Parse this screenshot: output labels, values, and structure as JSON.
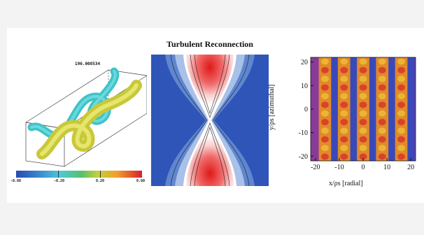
{
  "panel_sim": {
    "time_label": "196.008534",
    "colorbar_ticks": [
      "-0.60",
      "-0.20",
      "0.20",
      "0.60"
    ]
  },
  "panel_reconnection": {
    "title": "Turbulent Reconnection"
  },
  "chart_data": {
    "type": "heatmap",
    "title": "",
    "xlabel": "x/ρs [radial]",
    "ylabel": "y/ρs [azimuthal]",
    "xlim": [
      -22,
      22
    ],
    "ylim": [
      -22,
      22
    ],
    "x_ticks": [
      -20,
      -10,
      0,
      10,
      20
    ],
    "y_ticks": [
      -20,
      -10,
      0,
      10,
      20
    ],
    "band_x_centers": [
      -16,
      -8,
      0,
      8,
      16
    ]
  },
  "colors": {
    "hot": "#d92a2a",
    "mid": "#e08a2a",
    "cold": "#2a4cc0",
    "purple": "#8a3a9a"
  }
}
